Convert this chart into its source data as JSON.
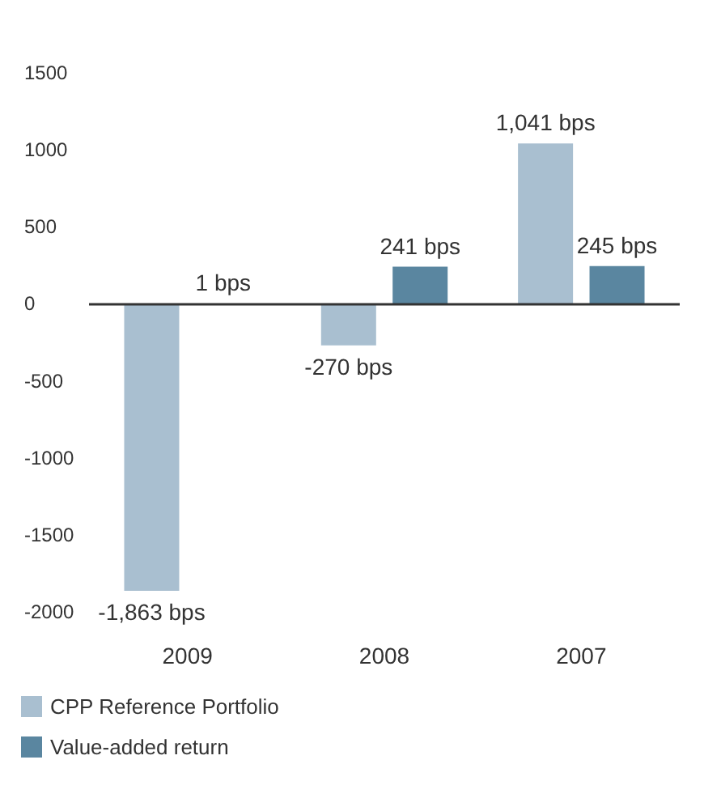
{
  "chart_data": {
    "type": "bar",
    "categories": [
      "2009",
      "2008",
      "2007"
    ],
    "series": [
      {
        "name": "CPP Reference Portfolio",
        "color": "#a9bfd0",
        "values": [
          -1863,
          -270,
          1041
        ],
        "value_labels": [
          "-1,863 bps",
          "-270 bps",
          "1,041 bps"
        ]
      },
      {
        "name": "Value-added return",
        "color": "#5a86a0",
        "values": [
          1,
          241,
          245
        ],
        "value_labels": [
          "1 bps",
          "241 bps",
          "245 bps"
        ]
      }
    ],
    "ylim": [
      -2000,
      1500
    ],
    "yticks": [
      -2000,
      -1500,
      -1000,
      -500,
      0,
      500,
      1000,
      1500
    ],
    "ref_lines": [
      {
        "axis": "y",
        "value": 0,
        "color": "#333333"
      }
    ],
    "grid": false,
    "legend": "bottom"
  }
}
